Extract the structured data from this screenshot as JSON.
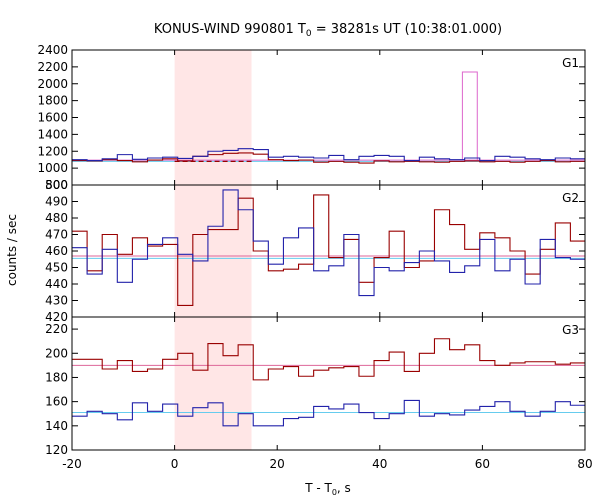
{
  "title": {
    "main": "KONUS-WIND 990801 T",
    "sub": "0",
    "rest": " = 38281s UT (10:38:01.000)"
  },
  "ylabel": "counts / sec",
  "xlabel": {
    "main": "T - T",
    "sub": "0",
    "rest": ", s"
  },
  "colors": {
    "red": "#990000",
    "blue": "#2222aa",
    "pink_bg": "#ffe6e6",
    "pink_line": "#dd66cc",
    "cyan_line": "#66ccee",
    "red_bg_line": "#dd6699"
  },
  "chart_data": {
    "type": "line",
    "xlim": [
      -20,
      80
    ],
    "x_ticks": [
      -20,
      0,
      20,
      40,
      60,
      80
    ],
    "x_tick_labels": [
      "-20",
      "0",
      "20",
      "40",
      "60",
      "80"
    ],
    "shaded_interval": [
      0,
      15
    ],
    "bin_start": -20,
    "bin_width": 2.944,
    "panels": [
      {
        "label": "G1",
        "ylim": [
          800,
          2400
        ],
        "y_ticks": [
          800,
          1000,
          1200,
          1400,
          1600,
          1800,
          2000,
          2200,
          2400
        ],
        "y_tick_labels": [
          "800",
          "1000",
          "1200",
          "1400",
          "1600",
          "1800",
          "2000",
          "2200",
          "2400"
        ],
        "series": [
          {
            "color": "red",
            "values": [
              1090,
              1085,
              1100,
              1090,
              1075,
              1095,
              1110,
              1085,
              1140,
              1160,
              1175,
              1180,
              1165,
              1100,
              1090,
              1095,
              1070,
              1080,
              1070,
              1060,
              1085,
              1075,
              1080,
              1075,
              1070,
              1080,
              1085,
              1075,
              1080,
              1070,
              1080,
              1090,
              1075,
              1080
            ]
          },
          {
            "color": "blue",
            "values": [
              1100,
              1090,
              1110,
              1160,
              1105,
              1120,
              1130,
              1115,
              1140,
              1200,
              1210,
              1230,
              1220,
              1130,
              1140,
              1130,
              1120,
              1150,
              1100,
              1140,
              1150,
              1140,
              1090,
              1130,
              1110,
              1100,
              1120,
              1090,
              1140,
              1130,
              1110,
              1100,
              1120,
              1110
            ]
          }
        ],
        "spike": {
          "x": [
            56.1,
            59.0
          ],
          "value": 2140,
          "color": "pink_line"
        },
        "background_levels": [
          {
            "value": 1095,
            "color": "pink_line"
          },
          {
            "value": 1080,
            "color": "cyan_line"
          }
        ],
        "dashed_interval": {
          "x": [
            0,
            15
          ],
          "value": 1080
        }
      },
      {
        "label": "G2",
        "ylim": [
          420,
          500
        ],
        "y_ticks": [
          420,
          430,
          440,
          450,
          460,
          470,
          480,
          490,
          500
        ],
        "y_tick_labels": [
          "420",
          "430",
          "440",
          "450",
          "460",
          "470",
          "480",
          "490",
          "500"
        ],
        "series": [
          {
            "color": "red",
            "values": [
              472,
              448,
              470,
              458,
              468,
              463,
              464,
              427,
              470,
              473,
              473,
              492,
              460,
              448,
              449,
              452,
              494,
              456,
              467,
              441,
              456,
              472,
              450,
              454,
              485,
              476,
              461,
              471,
              468,
              460,
              446,
              461,
              477,
              466,
              468,
              468
            ]
          },
          {
            "color": "blue",
            "values": [
              462,
              446,
              461,
              441,
              455,
              464,
              468,
              458,
              454,
              475,
              497,
              485,
              466,
              452,
              468,
              474,
              448,
              451,
              470,
              433,
              450,
              448,
              453,
              460,
              454,
              447,
              451,
              467,
              448,
              455,
              440,
              467,
              456,
              455,
              447,
              436,
              461
            ]
          }
        ],
        "background_levels": [
          {
            "value": 457,
            "color": "red_bg_line"
          },
          {
            "value": 455.5,
            "color": "cyan_line"
          }
        ]
      },
      {
        "label": "G3",
        "ylim": [
          120,
          230
        ],
        "y_ticks": [
          120,
          140,
          160,
          180,
          200,
          220
        ],
        "y_tick_labels": [
          "120",
          "140",
          "160",
          "180",
          "200",
          "220"
        ],
        "series": [
          {
            "color": "red",
            "values": [
              195,
              195,
              187,
              194,
              185,
              187,
              195,
              200,
              186,
              208,
              198,
              207,
              178,
              187,
              189,
              181,
              186,
              188,
              189,
              181,
              194,
              201,
              185,
              200,
              212,
              203,
              207,
              194,
              190,
              192,
              193,
              193,
              191,
              192,
              192,
              190,
              197,
              205
            ]
          },
          {
            "color": "blue",
            "values": [
              148,
              152,
              150,
              145,
              159,
              152,
              158,
              148,
              155,
              159,
              140,
              150,
              140,
              140,
              146,
              147,
              156,
              154,
              158,
              151,
              146,
              150,
              161,
              148,
              150,
              149,
              153,
              156,
              160,
              152,
              148,
              152,
              160,
              157,
              154,
              165,
              151,
              162
            ]
          }
        ],
        "background_levels": [
          {
            "value": 190,
            "color": "red_bg_line"
          },
          {
            "value": 151,
            "color": "cyan_line"
          }
        ]
      }
    ]
  }
}
